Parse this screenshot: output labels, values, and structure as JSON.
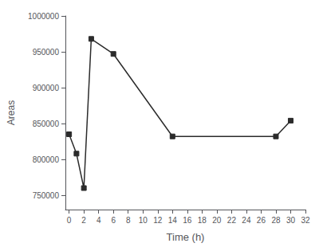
{
  "chart_data": {
    "type": "line",
    "x": [
      0,
      1,
      2,
      3,
      6,
      14,
      28,
      30
    ],
    "values": [
      835000,
      808000,
      760000,
      968000,
      947000,
      832000,
      832000,
      854000
    ],
    "xlabel": "Time (h)",
    "ylabel": "Areas",
    "xlim": [
      -0.5,
      32
    ],
    "ylim": [
      730000,
      1000000
    ],
    "xticks": [
      0,
      2,
      4,
      6,
      8,
      10,
      12,
      14,
      16,
      18,
      20,
      22,
      24,
      26,
      28,
      30,
      32
    ],
    "yticks": [
      750000,
      800000,
      850000,
      900000,
      950000,
      1000000
    ],
    "color": "#2b2b2b",
    "marker": "square",
    "grid": false
  }
}
